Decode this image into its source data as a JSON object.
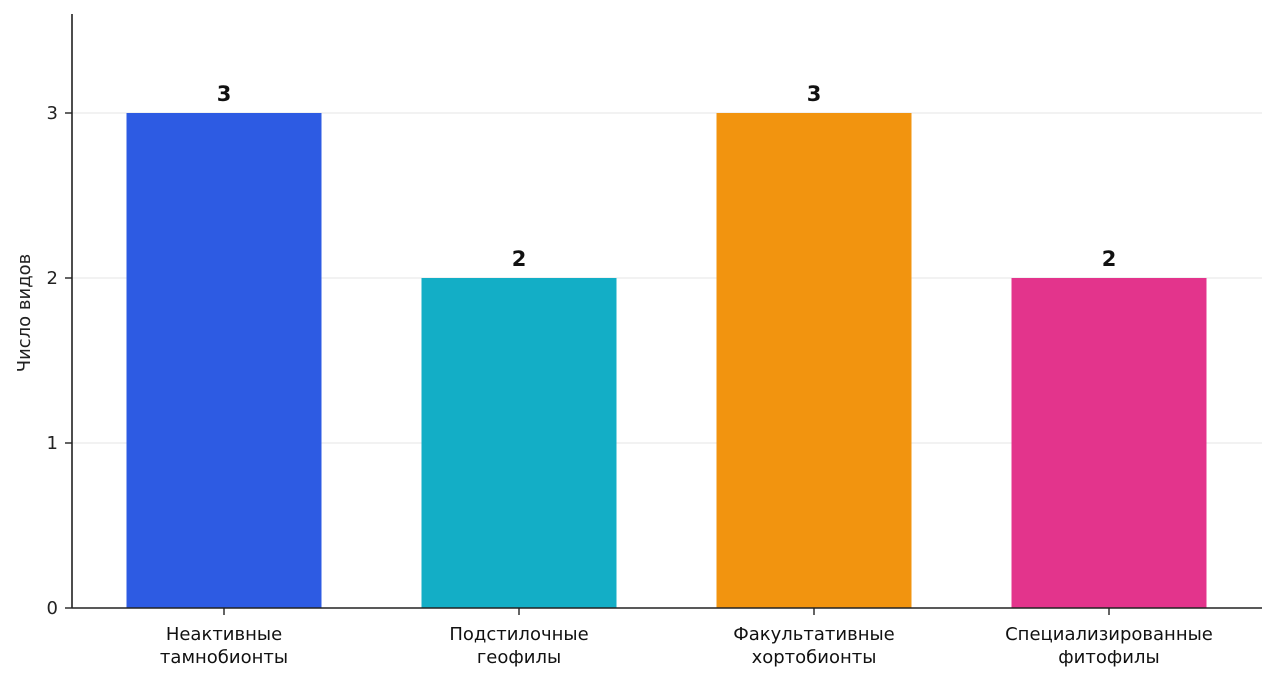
{
  "chart_data": {
    "type": "bar",
    "categories": [
      [
        "Неактивные",
        "тамнобионты"
      ],
      [
        "Подстилочные",
        "геофилы"
      ],
      [
        "Факультативные",
        "хортобионты"
      ],
      [
        "Специализированные",
        "фитофилы"
      ]
    ],
    "values": [
      3,
      2,
      3,
      2
    ],
    "value_labels": [
      "3",
      "2",
      "3",
      "2"
    ],
    "colors": [
      "#2d5be3",
      "#13aec6",
      "#f2940f",
      "#e3348c"
    ],
    "title": "",
    "xlabel": "",
    "ylabel": "Число видов",
    "ylim": [
      0,
      3.6
    ],
    "yticks": [
      0,
      1,
      2,
      3
    ],
    "ytick_labels": [
      "0",
      "1",
      "2",
      "3"
    ],
    "grid": "horizontal"
  }
}
